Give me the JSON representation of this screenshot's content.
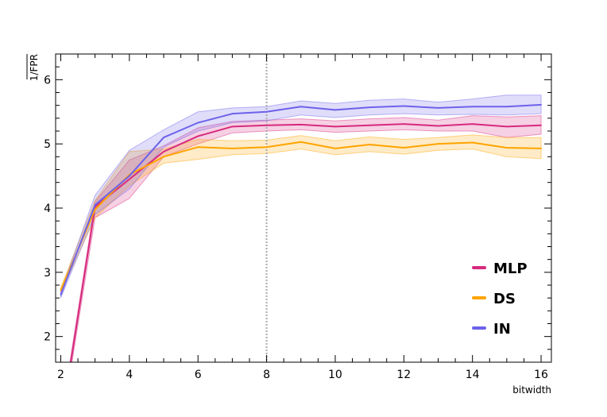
{
  "chart_data": {
    "type": "line",
    "title": "",
    "xlabel": "bitwidth",
    "ylabel": "1/FPR",
    "xlim": [
      1.85,
      16.3
    ],
    "ylim": [
      1.6,
      6.4
    ],
    "xticks": [
      2,
      4,
      6,
      8,
      10,
      12,
      14,
      16
    ],
    "yticks": [
      2,
      3,
      4,
      5,
      6
    ],
    "grid": false,
    "legend_position": "bottom-right",
    "reference_line": {
      "x": 8,
      "style": "dotted",
      "color": "#aaaaaa"
    },
    "x": [
      2,
      3,
      4,
      5,
      6,
      7,
      8,
      9,
      10,
      11,
      12,
      13,
      14,
      15,
      16
    ],
    "series": [
      {
        "name": "MLP",
        "color": "#d62a7e",
        "values": [
          0.6,
          4.02,
          4.45,
          4.88,
          5.12,
          5.27,
          5.29,
          5.3,
          5.27,
          5.29,
          5.31,
          5.28,
          5.31,
          5.27,
          5.29
        ],
        "lower": [
          0.5,
          3.85,
          4.15,
          4.8,
          5.0,
          5.17,
          5.2,
          5.22,
          5.18,
          5.2,
          5.22,
          5.2,
          5.2,
          5.1,
          5.15
        ],
        "upper": [
          0.7,
          4.1,
          4.75,
          4.97,
          5.25,
          5.35,
          5.37,
          5.39,
          5.36,
          5.39,
          5.41,
          5.37,
          5.44,
          5.42,
          5.44
        ]
      },
      {
        "name": "DS",
        "color": "#ffa400",
        "values": [
          2.72,
          3.98,
          4.52,
          4.8,
          4.95,
          4.93,
          4.95,
          5.03,
          4.93,
          4.99,
          4.94,
          5.0,
          5.02,
          4.94,
          4.93
        ],
        "lower": [
          2.68,
          3.85,
          4.35,
          4.7,
          4.76,
          4.83,
          4.85,
          4.92,
          4.83,
          4.88,
          4.84,
          4.9,
          4.92,
          4.8,
          4.77
        ],
        "upper": [
          2.76,
          4.12,
          4.88,
          4.92,
          5.07,
          5.05,
          5.06,
          5.13,
          5.05,
          5.11,
          5.07,
          5.1,
          5.14,
          5.1,
          5.1
        ]
      },
      {
        "name": "IN",
        "color": "#6d62ea",
        "values": [
          2.65,
          4.05,
          4.5,
          5.1,
          5.33,
          5.47,
          5.5,
          5.58,
          5.53,
          5.57,
          5.59,
          5.56,
          5.58,
          5.58,
          5.61
        ],
        "lower": [
          2.6,
          3.9,
          4.3,
          4.95,
          5.2,
          5.33,
          5.36,
          5.45,
          5.41,
          5.45,
          5.47,
          5.45,
          5.46,
          5.45,
          5.47
        ],
        "upper": [
          2.7,
          4.2,
          4.9,
          5.22,
          5.5,
          5.56,
          5.58,
          5.67,
          5.63,
          5.68,
          5.7,
          5.65,
          5.7,
          5.76,
          5.76
        ]
      }
    ]
  }
}
